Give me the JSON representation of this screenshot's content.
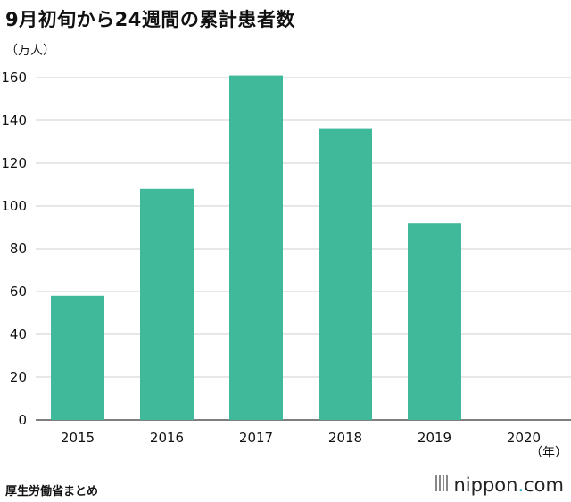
{
  "chart_data": {
    "type": "bar",
    "title": "9月初旬から24週間の累計患者数",
    "ylabel": "（万人）",
    "xlabel": "（年）",
    "categories": [
      "2015",
      "2016",
      "2017",
      "2018",
      "2019",
      "2020"
    ],
    "values": [
      58,
      108,
      161,
      136,
      92,
      0
    ],
    "ylim": [
      0,
      160
    ],
    "yticks": [
      0,
      20,
      40,
      60,
      80,
      100,
      120,
      140,
      160
    ],
    "grid": true,
    "bar_color": "#40b99b"
  },
  "source": "厚生労働省まとめ",
  "brand": {
    "name": "nippon",
    "dot": ".",
    "tld": "com",
    "accent": "#1aa8c8"
  }
}
